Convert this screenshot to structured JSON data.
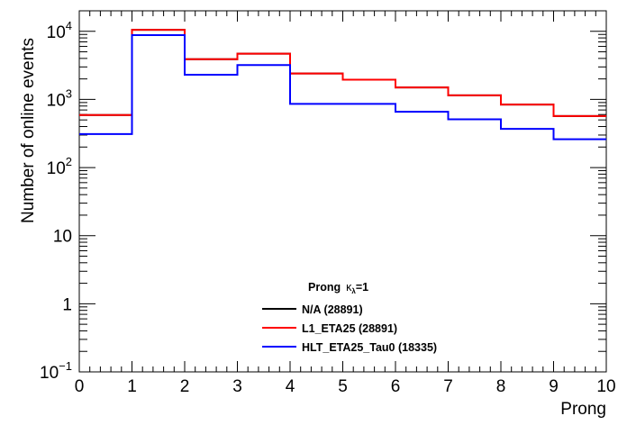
{
  "chart_data": {
    "type": "histogram-step",
    "xlabel": "Prong",
    "ylabel": "Number of online events",
    "xlim": [
      0,
      10
    ],
    "ylim": [
      0.1,
      20000
    ],
    "y_scale": "log",
    "x_ticks": [
      "0",
      "1",
      "2",
      "3",
      "4",
      "5",
      "6",
      "7",
      "8",
      "9",
      "10"
    ],
    "y_ticks": [
      {
        "value": 0.1,
        "base": "10",
        "exp": "−1"
      },
      {
        "value": 1,
        "base": "1",
        "exp": ""
      },
      {
        "value": 10,
        "base": "10",
        "exp": ""
      },
      {
        "value": 100,
        "base": "10",
        "exp": "2"
      },
      {
        "value": 1000,
        "base": "10",
        "exp": "3"
      },
      {
        "value": 10000,
        "base": "10",
        "exp": "4"
      }
    ],
    "bin_edges": [
      0,
      1,
      2,
      3,
      4,
      5,
      6,
      7,
      8,
      9,
      10
    ],
    "legend": {
      "title": "Prong",
      "title_kappa": "κ",
      "title_sub": "λ",
      "title_suffix": "=1"
    },
    "series": [
      {
        "name": "N/A (28891)",
        "color": "#000000",
        "values": [
          590,
          10500,
          3900,
          4700,
          2400,
          1950,
          1500,
          1150,
          840,
          570
        ]
      },
      {
        "name": "L1_ETA25 (28891)",
        "color": "#ff0000",
        "values": [
          590,
          10500,
          3900,
          4700,
          2400,
          1950,
          1500,
          1150,
          840,
          570
        ]
      },
      {
        "name": "HLT_ETA25_Tau0 (18335)",
        "color": "#0000ff",
        "values": [
          310,
          8800,
          2300,
          3200,
          860,
          860,
          660,
          510,
          370,
          260
        ]
      }
    ]
  }
}
